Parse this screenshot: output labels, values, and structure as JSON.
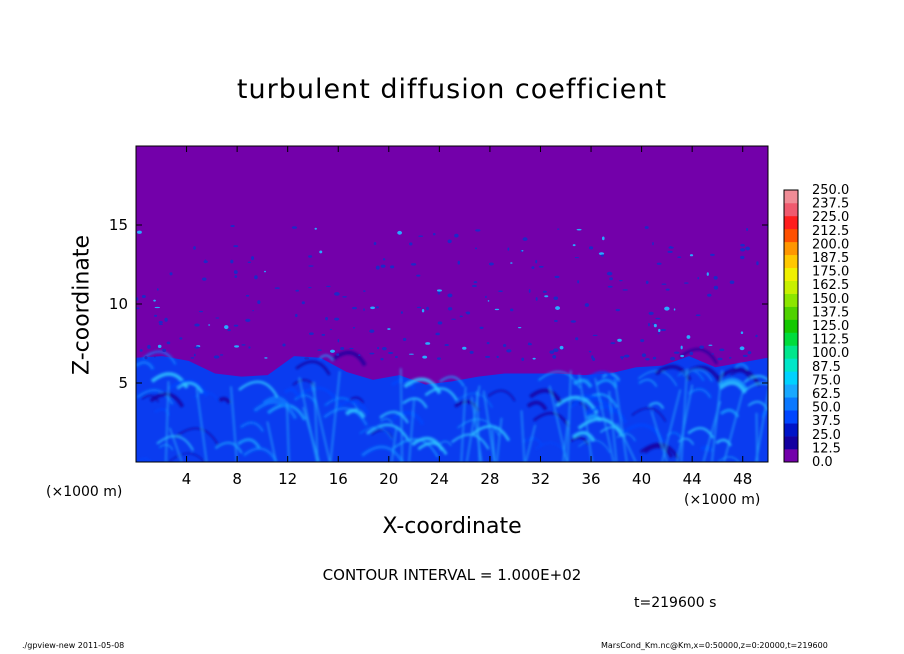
{
  "chart_data": {
    "type": "heatmap",
    "title": "turbulent diffusion coefficient",
    "xlabel": "X-coordinate",
    "ylabel": "Z-coordinate",
    "x_unit_left": "(×1000 m)",
    "x_unit_right": "(×1000 m)",
    "xlim": [
      0,
      50
    ],
    "ylim": [
      0,
      20
    ],
    "x_ticks": [
      4,
      8,
      12,
      16,
      20,
      24,
      28,
      32,
      36,
      40,
      44,
      48
    ],
    "y_ticks": [
      5,
      10,
      15
    ],
    "colorbar_levels": [
      "0.0",
      "12.5",
      "25.0",
      "37.5",
      "50.0",
      "62.5",
      "75.0",
      "87.5",
      "100.0",
      "112.5",
      "125.0",
      "137.5",
      "150.0",
      "162.5",
      "175.0",
      "187.5",
      "200.0",
      "212.5",
      "225.0",
      "237.5",
      "250.0"
    ],
    "colorbar_colors": [
      "#7300aa",
      "#1400a0",
      "#0014c8",
      "#0046ff",
      "#0a78ff",
      "#18a8ff",
      "#00d2ff",
      "#00e6c8",
      "#00e68c",
      "#00dc3c",
      "#14c800",
      "#50d200",
      "#8ce600",
      "#c8f000",
      "#f0f000",
      "#ffc800",
      "#ff9600",
      "#ff5000",
      "#ff1e1e",
      "#f05a6e",
      "#f08c96"
    ],
    "background_color": "#7300aa",
    "boundary_layer_top_km": [
      6.6,
      6.7,
      6.4,
      5.6,
      5.4,
      5.5,
      6.7,
      6.6,
      5.7,
      5.2,
      5.5,
      4.9,
      5.1,
      5.4,
      5.6,
      5.6,
      5.6,
      5.5,
      5.6,
      6.0,
      6.1,
      6.7,
      6.0,
      6.3,
      6.6
    ],
    "contour_interval": "CONTOUR INTERVAL = 1.000E+02",
    "time": "t=219600  s"
  },
  "footer": {
    "left": "./gpview-new   2011-05-08",
    "right": "MarsCond_Km.nc@Km,x=0:50000,z=0:20000,t=219600"
  }
}
